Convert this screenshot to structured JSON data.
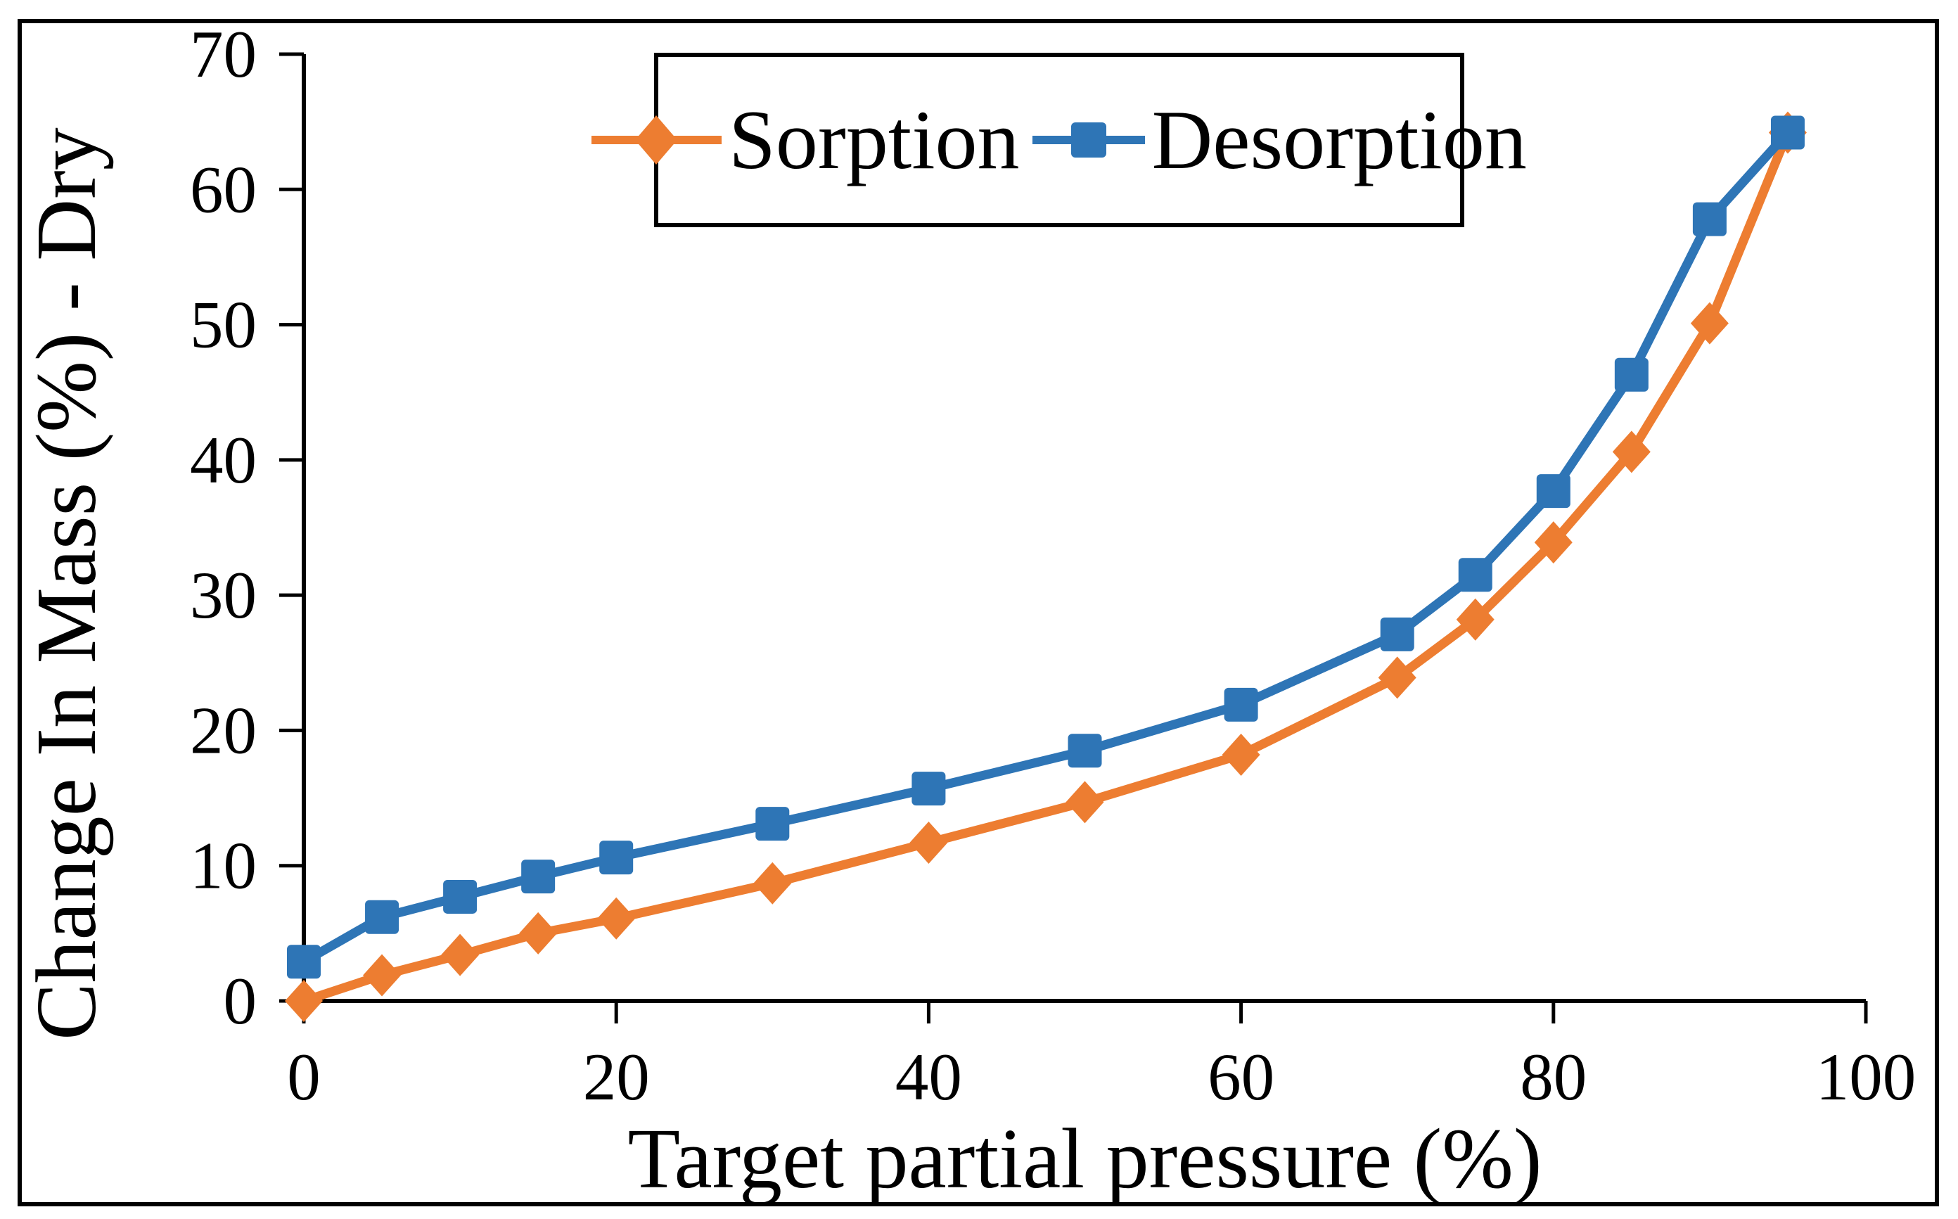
{
  "chart_data": {
    "type": "line",
    "title": "",
    "xlabel": "Target partial pressure (%)",
    "ylabel": "Change In Mass (%) - Dry",
    "x": [
      0,
      5,
      10,
      15,
      20,
      30,
      40,
      50,
      60,
      70,
      75,
      80,
      85,
      90,
      95
    ],
    "series": [
      {
        "name": "Sorption",
        "marker": "diamond",
        "color": "#ED7D31",
        "values": [
          0,
          1.9,
          3.4,
          5.0,
          6.1,
          8.7,
          11.7,
          14.7,
          18.2,
          23.9,
          28.2,
          33.9,
          40.6,
          50.1,
          64.2
        ]
      },
      {
        "name": "Desorption",
        "marker": "square",
        "color": "#2E75B6",
        "values": [
          2.9,
          6.2,
          7.7,
          9.2,
          10.6,
          13.1,
          15.7,
          18.5,
          21.9,
          27.1,
          31.5,
          37.7,
          46.3,
          57.8,
          64.2
        ]
      }
    ],
    "x_ticks": [
      0,
      20,
      40,
      60,
      80,
      100
    ],
    "y_ticks": [
      0,
      10,
      20,
      30,
      40,
      50,
      60,
      70
    ],
    "xlim": [
      0,
      100
    ],
    "ylim": [
      0,
      70
    ],
    "grid": false,
    "legend_position": "top-center-inside"
  },
  "colors": {
    "sorption": "#ED7D31",
    "desorption": "#2E75B6",
    "axis": "#000000",
    "text": "#000000",
    "background": "#FFFFFF"
  }
}
